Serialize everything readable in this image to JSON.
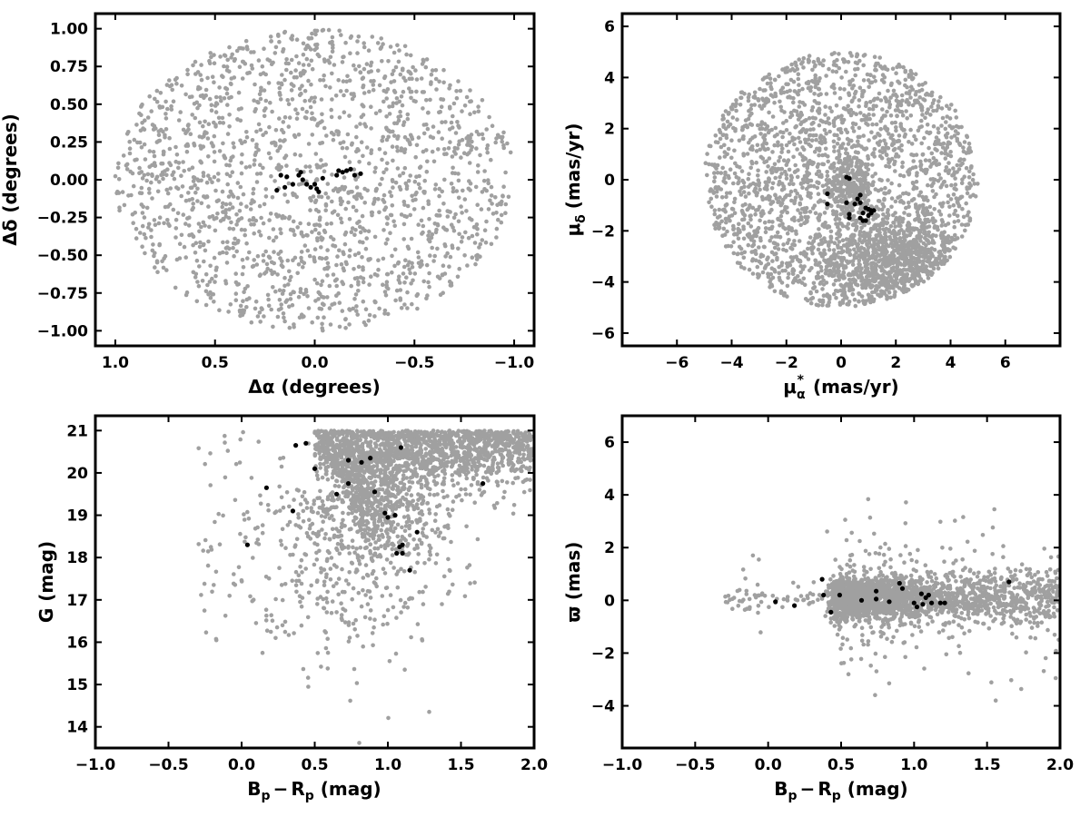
{
  "colors": {
    "field": "#a0a0a0",
    "members": "#000000",
    "axes": "#000000"
  },
  "chart_data": [
    {
      "type": "scatter",
      "xlim": [
        1.1,
        -1.1
      ],
      "ylim": [
        -1.1,
        1.1
      ],
      "xticks": [
        1.0,
        0.5,
        0.0,
        -0.5,
        -1.0
      ],
      "xtick_labels": [
        "1.0",
        "0.5",
        "0.0",
        "−0.5",
        "−1.0"
      ],
      "yticks": [
        1.0,
        0.75,
        0.5,
        0.25,
        0.0,
        -0.25,
        -0.5,
        -0.75,
        -1.0
      ],
      "ytick_labels": [
        "1.00",
        "0.75",
        "0.50",
        "0.25",
        "0.00",
        "−0.25",
        "−0.50",
        "−0.75",
        "−1.00"
      ],
      "xlabel": "Δα (degrees)",
      "ylabel": "Δδ (degrees)",
      "grid": false,
      "field": {
        "shape": "disk",
        "center": [
          0.0,
          0.0
        ],
        "radius": 1.0,
        "count": 1800
      },
      "members": [
        [
          0.19,
          -0.07
        ],
        [
          0.17,
          0.03
        ],
        [
          0.15,
          -0.05
        ],
        [
          0.14,
          0.02
        ],
        [
          0.11,
          -0.03
        ],
        [
          0.08,
          0.03
        ],
        [
          0.07,
          0.05
        ],
        [
          0.06,
          0.0
        ],
        [
          0.04,
          -0.03
        ],
        [
          0.02,
          -0.05
        ],
        [
          0.0,
          -0.03
        ],
        [
          -0.01,
          -0.06
        ],
        [
          -0.02,
          -0.08
        ],
        [
          -0.04,
          0.01
        ],
        [
          -0.11,
          0.03
        ],
        [
          -0.12,
          0.06
        ],
        [
          -0.14,
          0.05
        ],
        [
          -0.16,
          0.06
        ],
        [
          -0.18,
          0.07
        ],
        [
          -0.2,
          0.03
        ],
        [
          -0.23,
          0.04
        ]
      ]
    },
    {
      "type": "scatter",
      "xlim": [
        -8,
        8
      ],
      "ylim": [
        -6.5,
        6.5
      ],
      "xticks": [
        -6,
        -4,
        -2,
        0,
        2,
        4,
        6
      ],
      "xtick_labels": [
        "−6",
        "−4",
        "−2",
        "0",
        "2",
        "4",
        "6"
      ],
      "yticks": [
        6,
        4,
        2,
        0,
        -2,
        -4,
        -6
      ],
      "ytick_labels": [
        "6",
        "4",
        "2",
        "0",
        "−2",
        "−4",
        "−6"
      ],
      "xlabel_parts": {
        "mu": "μ",
        "sub": "α",
        "sup": "*",
        "unit": "(mas/yr)"
      },
      "ylabel_parts": {
        "mu": "μ",
        "sub": "δ",
        "unit": "(mas/yr)"
      },
      "grid": false,
      "field": {
        "shape": "disk",
        "center": [
          0.0,
          0.0
        ],
        "radius": 5.0,
        "count": 2100,
        "clumps": [
          {
            "center": [
              2.0,
              -3.2
            ],
            "spread": [
              1.6,
              0.9
            ],
            "count": 900
          },
          {
            "center": [
              0.3,
              -0.3
            ],
            "spread": [
              0.45,
              0.55
            ],
            "count": 250
          }
        ]
      },
      "members": [
        [
          0.2,
          0.1
        ],
        [
          0.3,
          0.05
        ],
        [
          -0.5,
          -0.55
        ],
        [
          -0.5,
          -0.95
        ],
        [
          0.2,
          -0.9
        ],
        [
          0.5,
          -0.95
        ],
        [
          0.7,
          -0.9
        ],
        [
          0.6,
          -0.75
        ],
        [
          0.7,
          -0.6
        ],
        [
          0.9,
          -1.1
        ],
        [
          1.0,
          -1.15
        ],
        [
          1.1,
          -1.2
        ],
        [
          1.1,
          -1.3
        ],
        [
          0.8,
          -1.3
        ],
        [
          1.0,
          -1.4
        ],
        [
          0.7,
          -1.5
        ],
        [
          0.8,
          -1.6
        ],
        [
          0.9,
          -1.6
        ],
        [
          0.3,
          -1.35
        ],
        [
          0.3,
          -1.5
        ],
        [
          1.2,
          -1.2
        ]
      ]
    },
    {
      "type": "scatter",
      "xlim": [
        -1.0,
        2.0
      ],
      "ylim": [
        13.5,
        21.35
      ],
      "xticks": [
        -1.0,
        -0.5,
        0.0,
        0.5,
        1.0,
        1.5,
        2.0
      ],
      "xtick_labels": [
        "−1.0",
        "−0.5",
        "0.0",
        "0.5",
        "1.0",
        "1.5",
        "2.0"
      ],
      "yticks": [
        21,
        20,
        19,
        18,
        17,
        16,
        15,
        14
      ],
      "ytick_labels": [
        "21",
        "20",
        "19",
        "18",
        "17",
        "16",
        "15",
        "14"
      ],
      "xlabel_parts": {
        "b": "B",
        "bsub": "p",
        "minus": "−",
        "r": "R",
        "rsub": "p",
        "unit": "(mag)"
      },
      "ylabel": "G (mag)",
      "grid": false,
      "field": {
        "kind": "cmd",
        "count": 2600
      },
      "members": [
        [
          0.04,
          18.3
        ],
        [
          0.17,
          19.65
        ],
        [
          0.35,
          19.1
        ],
        [
          0.37,
          20.65
        ],
        [
          0.44,
          20.7
        ],
        [
          0.5,
          20.1
        ],
        [
          0.65,
          19.5
        ],
        [
          0.73,
          20.3
        ],
        [
          0.73,
          19.75
        ],
        [
          0.82,
          20.25
        ],
        [
          0.88,
          20.35
        ],
        [
          0.91,
          19.55
        ],
        [
          0.98,
          19.05
        ],
        [
          1.0,
          18.95
        ],
        [
          1.05,
          19.0
        ],
        [
          1.06,
          18.1
        ],
        [
          1.08,
          18.25
        ],
        [
          1.1,
          18.3
        ],
        [
          1.1,
          18.1
        ],
        [
          1.09,
          20.6
        ],
        [
          1.15,
          17.7
        ],
        [
          1.2,
          18.6
        ],
        [
          1.65,
          19.75
        ]
      ]
    },
    {
      "type": "scatter",
      "xlim": [
        -1.0,
        2.0
      ],
      "ylim": [
        -5.6,
        7.0
      ],
      "xticks": [
        -1.0,
        -0.5,
        0.0,
        0.5,
        1.0,
        1.5,
        2.0
      ],
      "xtick_labels": [
        "−1.0",
        "−0.5",
        "0.0",
        "0.5",
        "1.0",
        "1.5",
        "2.0"
      ],
      "yticks": [
        6,
        4,
        2,
        0,
        -2,
        -4
      ],
      "ytick_labels": [
        "6",
        "4",
        "2",
        "0",
        "−2",
        "−4"
      ],
      "xlabel_parts": {
        "b": "B",
        "bsub": "p",
        "minus": "−",
        "r": "R",
        "rsub": "p",
        "unit": "(mag)"
      },
      "ylabel": "ϖ (mas)",
      "grid": false,
      "field": {
        "kind": "parallax",
        "count": 2400
      },
      "members": [
        [
          0.05,
          -0.05
        ],
        [
          0.18,
          -0.2
        ],
        [
          0.37,
          0.8
        ],
        [
          0.38,
          0.2
        ],
        [
          0.43,
          -0.45
        ],
        [
          0.49,
          0.2
        ],
        [
          0.64,
          0.0
        ],
        [
          0.74,
          0.35
        ],
        [
          0.74,
          0.05
        ],
        [
          0.83,
          -0.05
        ],
        [
          0.9,
          0.65
        ],
        [
          0.92,
          0.45
        ],
        [
          1.0,
          -0.1
        ],
        [
          1.02,
          -0.25
        ],
        [
          1.05,
          0.25
        ],
        [
          1.06,
          -0.15
        ],
        [
          1.08,
          0.1
        ],
        [
          1.1,
          0.2
        ],
        [
          1.12,
          -0.1
        ],
        [
          1.18,
          -0.1
        ],
        [
          1.21,
          -0.1
        ],
        [
          1.65,
          0.7
        ]
      ]
    }
  ]
}
